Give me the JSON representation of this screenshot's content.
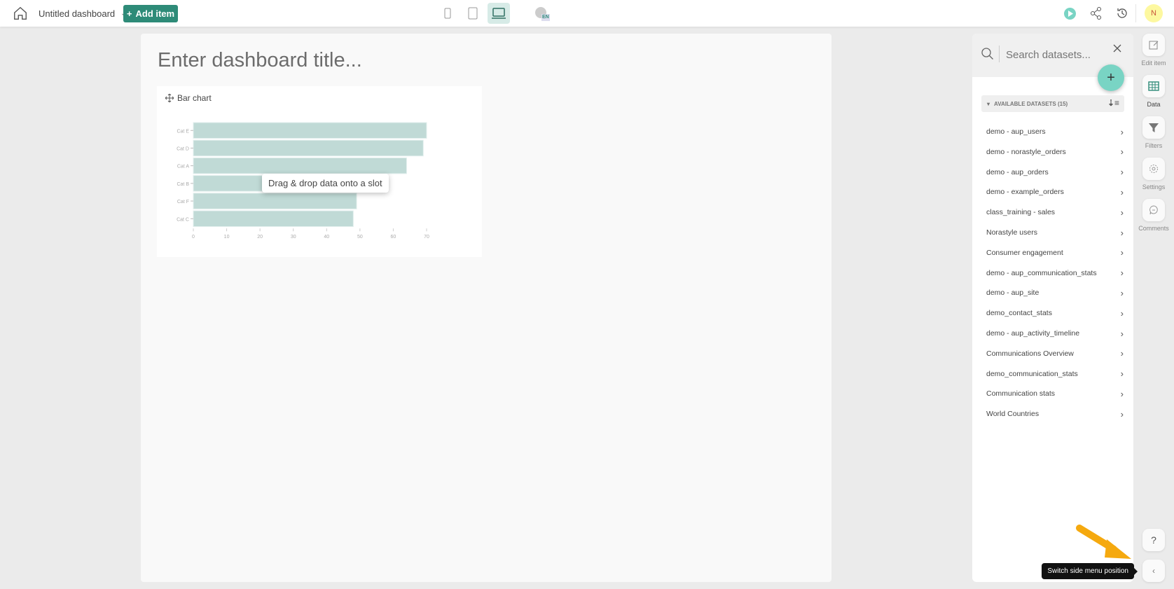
{
  "topbar": {
    "dashboard_name": "Untitled dashboard",
    "add_item": "Add item",
    "language": "EN",
    "avatar_initial": "N"
  },
  "canvas": {
    "title_placeholder": "Enter dashboard title..."
  },
  "chart_card": {
    "title": "Bar chart",
    "tooltip": "Drag & drop data onto a slot"
  },
  "chart_data": {
    "type": "bar",
    "orientation": "horizontal",
    "categories": [
      "Cat E",
      "Cat D",
      "Cat A",
      "Cat B",
      "Cat F",
      "Cat C"
    ],
    "values": [
      70,
      69,
      64,
      57,
      49,
      48
    ],
    "xlim": [
      0,
      70
    ],
    "xticks": [
      0,
      10,
      20,
      30,
      40,
      50,
      60,
      70
    ],
    "color": "#c0dad6",
    "grid": false
  },
  "panel": {
    "search_placeholder": "Search datasets...",
    "section_label": "AVAILABLE DATASETS (15)",
    "datasets": [
      "demo - aup_users",
      "demo - norastyle_orders",
      "demo - aup_orders",
      "demo - example_orders",
      "class_training - sales",
      "Norastyle users",
      "Consumer engagement",
      "demo - aup_communication_stats",
      "demo - aup_site",
      "demo_contact_stats",
      "demo - aup_activity_timeline",
      "Communications Overview",
      "demo_communication_stats",
      "Communication stats",
      "World Countries"
    ]
  },
  "rail": {
    "edit": "Edit item",
    "data": "Data",
    "filters": "Filters",
    "settings": "Settings",
    "comments": "Comments",
    "help": "?"
  },
  "tooltip_switch": "Switch side menu position",
  "colors": {
    "accent": "#2e8b78",
    "fab": "#79d4c4",
    "avatar": "#fdf8a0",
    "arrow": "#f5a90f"
  }
}
